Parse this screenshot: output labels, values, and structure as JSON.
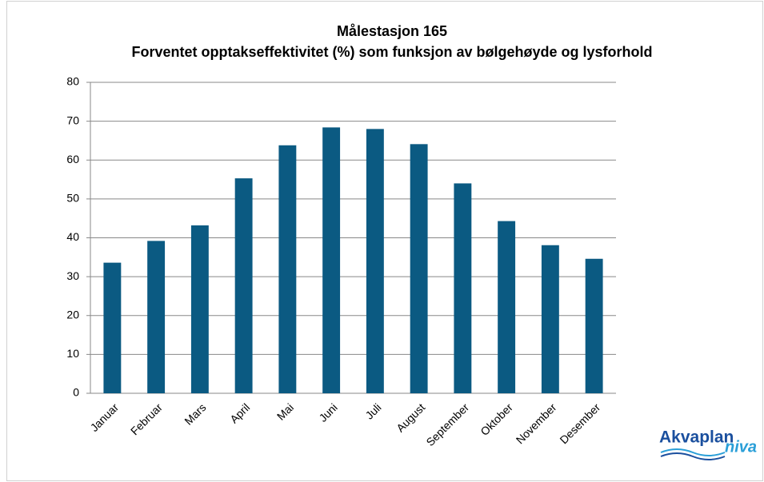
{
  "chart_data": {
    "type": "bar",
    "title": "Målestasjon 165",
    "subtitle": "Forventet opptakseffektivitet (%) som funksjon av bølgehøyde og lysforhold",
    "categories": [
      "Januar",
      "Februar",
      "Mars",
      "April",
      "Mai",
      "Juni",
      "Juli",
      "August",
      "September",
      "Oktober",
      "November",
      "Desember"
    ],
    "values": [
      33.6,
      39.2,
      43.2,
      55.3,
      63.8,
      68.4,
      68.0,
      64.1,
      54.0,
      44.3,
      38.1,
      34.6
    ],
    "color": "#0b5a82",
    "ylim": [
      0,
      80
    ],
    "yticks": [
      0,
      10,
      20,
      30,
      40,
      50,
      60,
      70,
      80
    ],
    "grid": true
  },
  "logo": {
    "word1": "Akvaplan",
    "word2": "niva"
  }
}
